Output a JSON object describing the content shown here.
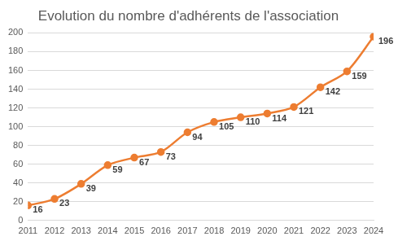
{
  "chart_data": {
    "type": "line",
    "title": "Evolution du nombre d'adhérents de l'association",
    "categories": [
      "2011",
      "2012",
      "2013",
      "2014",
      "2015",
      "2016",
      "2017",
      "2018",
      "2019",
      "2020",
      "2021",
      "2022",
      "2023",
      "2024"
    ],
    "values": [
      16,
      23,
      39,
      59,
      67,
      73,
      94,
      105,
      110,
      114,
      121,
      142,
      159,
      196
    ],
    "color": "#ed7d31",
    "marker": "circle",
    "ylim": [
      0,
      200
    ],
    "yticks": [
      0,
      20,
      40,
      60,
      80,
      100,
      120,
      140,
      160,
      180,
      200
    ],
    "grid": true,
    "data_labels": true
  }
}
